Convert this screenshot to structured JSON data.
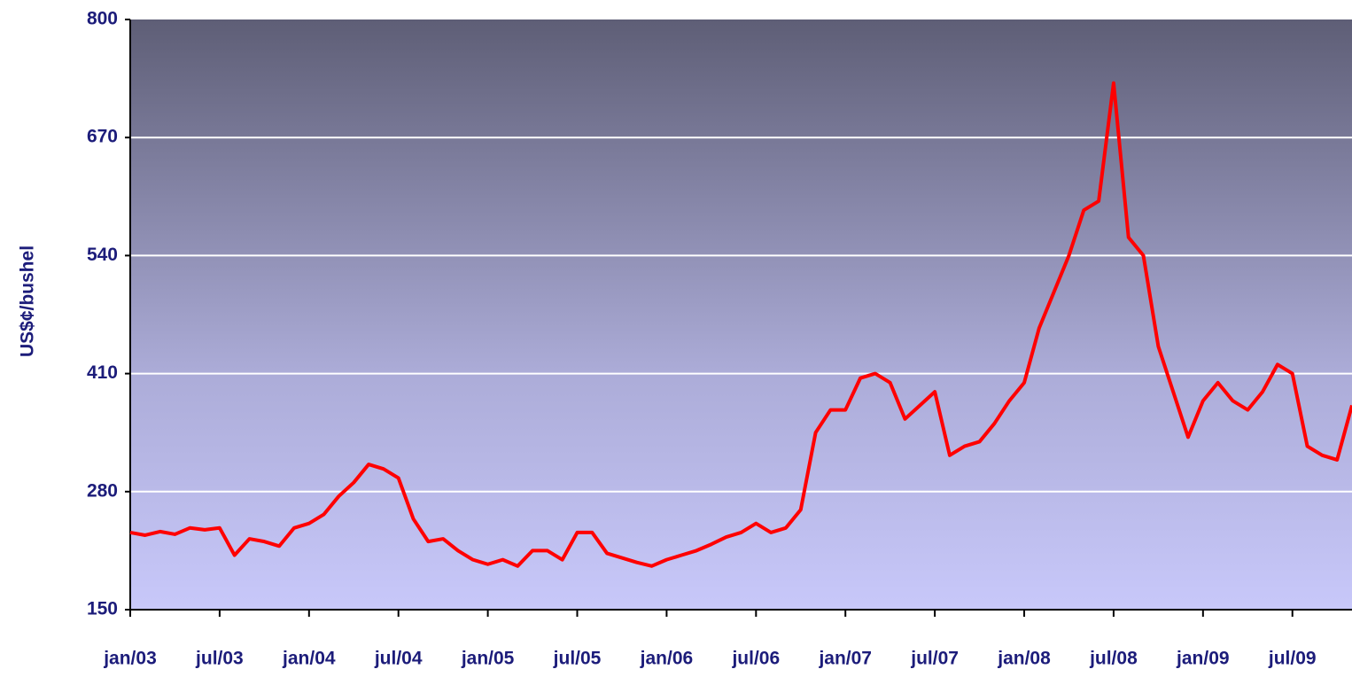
{
  "chart_data": {
    "type": "line",
    "y_label": "US$¢/bushel",
    "categories": [
      "jan/03",
      null,
      null,
      null,
      null,
      null,
      "jul/03",
      null,
      null,
      null,
      null,
      null,
      "jan/04",
      null,
      null,
      null,
      null,
      null,
      "jul/04",
      null,
      null,
      null,
      null,
      null,
      "jan/05",
      null,
      null,
      null,
      null,
      null,
      "jul/05",
      null,
      null,
      null,
      null,
      null,
      "jan/06",
      null,
      null,
      null,
      null,
      null,
      "jul/06",
      null,
      null,
      null,
      null,
      null,
      "jan/07",
      null,
      null,
      null,
      null,
      null,
      "jul/07",
      null,
      null,
      null,
      null,
      null,
      "jan/08",
      null,
      null,
      null,
      null,
      null,
      "jul/08",
      null,
      null,
      null,
      null,
      null,
      "jan/09",
      null,
      null,
      null,
      null,
      null,
      "jul/09",
      null,
      null,
      null,
      null
    ],
    "series": [
      {
        "color": "#ff0000",
        "values": [
          235,
          232,
          236,
          233,
          240,
          238,
          240,
          210,
          228,
          225,
          220,
          240,
          245,
          255,
          275,
          290,
          310,
          305,
          295,
          250,
          225,
          228,
          215,
          205,
          200,
          205,
          198,
          215,
          215,
          205,
          235,
          235,
          212,
          207,
          202,
          198,
          205,
          210,
          215,
          222,
          230,
          235,
          245,
          235,
          240,
          260,
          345,
          370,
          370,
          405,
          410,
          400,
          360,
          375,
          390,
          320,
          330,
          335,
          355,
          380,
          400,
          460,
          500,
          540,
          590,
          600,
          730,
          560,
          540,
          440,
          390,
          340,
          380,
          400,
          380,
          370,
          390,
          420,
          410,
          330,
          320,
          315,
          375
        ]
      }
    ],
    "ylim": [
      150,
      800
    ],
    "yticks": [
      150,
      280,
      410,
      540,
      670,
      800
    ],
    "grid": true
  }
}
